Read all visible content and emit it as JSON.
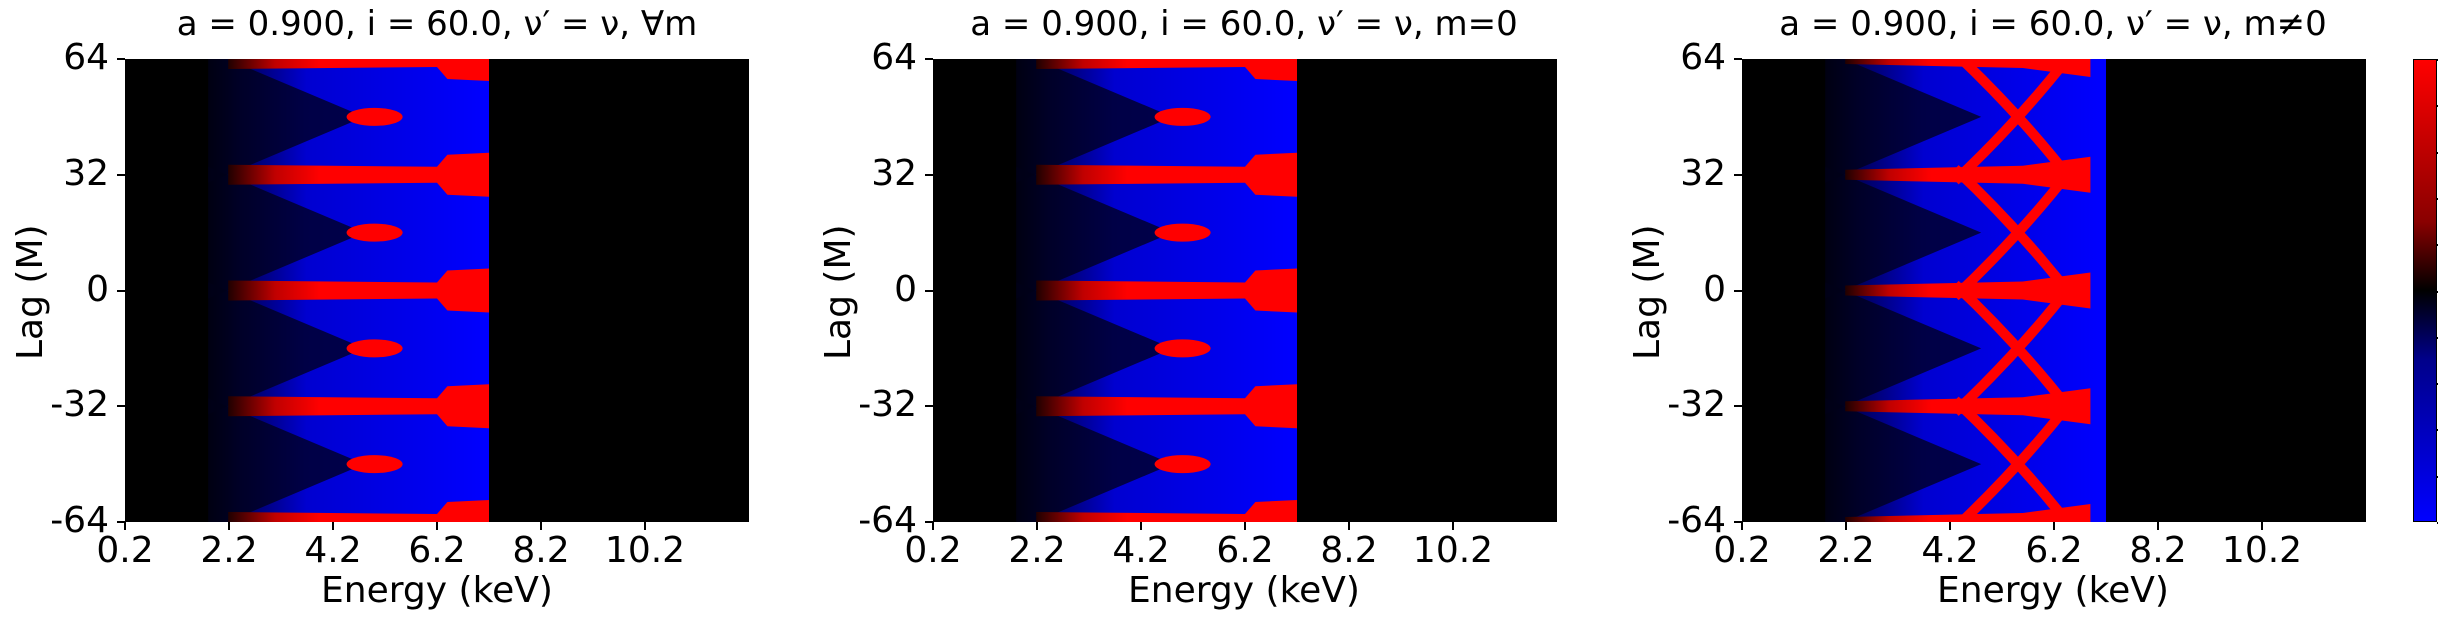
{
  "chart_data": [
    {
      "type": "heatmap",
      "title": "a = 0.900, i = 60.0, ν′ = ν, ∀m",
      "xlabel": "Energy (keV)",
      "ylabel": "Lag (M)",
      "xlim": [
        0.2,
        12.2
      ],
      "ylim": [
        -64,
        64
      ],
      "xticks": [
        "0.2",
        "2.2",
        "4.2",
        "6.2",
        "8.2",
        "10.2"
      ],
      "yticks": [
        "64",
        "32",
        "0",
        "-32",
        "-64"
      ],
      "signal_energy_range_keV": [
        1.8,
        7.2
      ],
      "red_band_lags": [
        -64,
        -32,
        0,
        32,
        64
      ],
      "secondary_red_lags": [
        -48,
        -16,
        16,
        48
      ]
    },
    {
      "type": "heatmap",
      "title": "a = 0.900, i = 60.0, ν′ = ν, m=0",
      "xlabel": "Energy (keV)",
      "ylabel": "Lag (M)",
      "xlim": [
        0.2,
        12.2
      ],
      "ylim": [
        -64,
        64
      ],
      "xticks": [
        "0.2",
        "2.2",
        "4.2",
        "6.2",
        "8.2",
        "10.2"
      ],
      "yticks": [
        "64",
        "32",
        "0",
        "-32",
        "-64"
      ],
      "signal_energy_range_keV": [
        1.8,
        7.2
      ],
      "red_band_lags": [
        -64,
        -32,
        0,
        32,
        64
      ],
      "secondary_red_lags": [
        -48,
        -16,
        16,
        48
      ]
    },
    {
      "type": "heatmap",
      "title": "a = 0.900, i = 60.0, ν′ = ν, m≠0",
      "xlabel": "Energy (keV)",
      "ylabel": "Lag (M)",
      "xlim": [
        0.2,
        12.2
      ],
      "ylim": [
        -64,
        64
      ],
      "xticks": [
        "0.2",
        "2.2",
        "4.2",
        "6.2",
        "8.2",
        "10.2"
      ],
      "yticks": [
        "64",
        "32",
        "0",
        "-32",
        "-64"
      ],
      "signal_energy_range_keV": [
        1.8,
        7.2
      ],
      "red_band_lags": [
        -64,
        -32,
        0,
        32,
        64
      ],
      "secondary_red_lags": []
    }
  ],
  "colorbar": {
    "colors": [
      "#ff0000",
      "#000000",
      "#0000ff"
    ],
    "orientation": "vertical"
  },
  "colors": {
    "positive": "#ff0000",
    "negative": "#0000ff",
    "zero": "#000000"
  }
}
